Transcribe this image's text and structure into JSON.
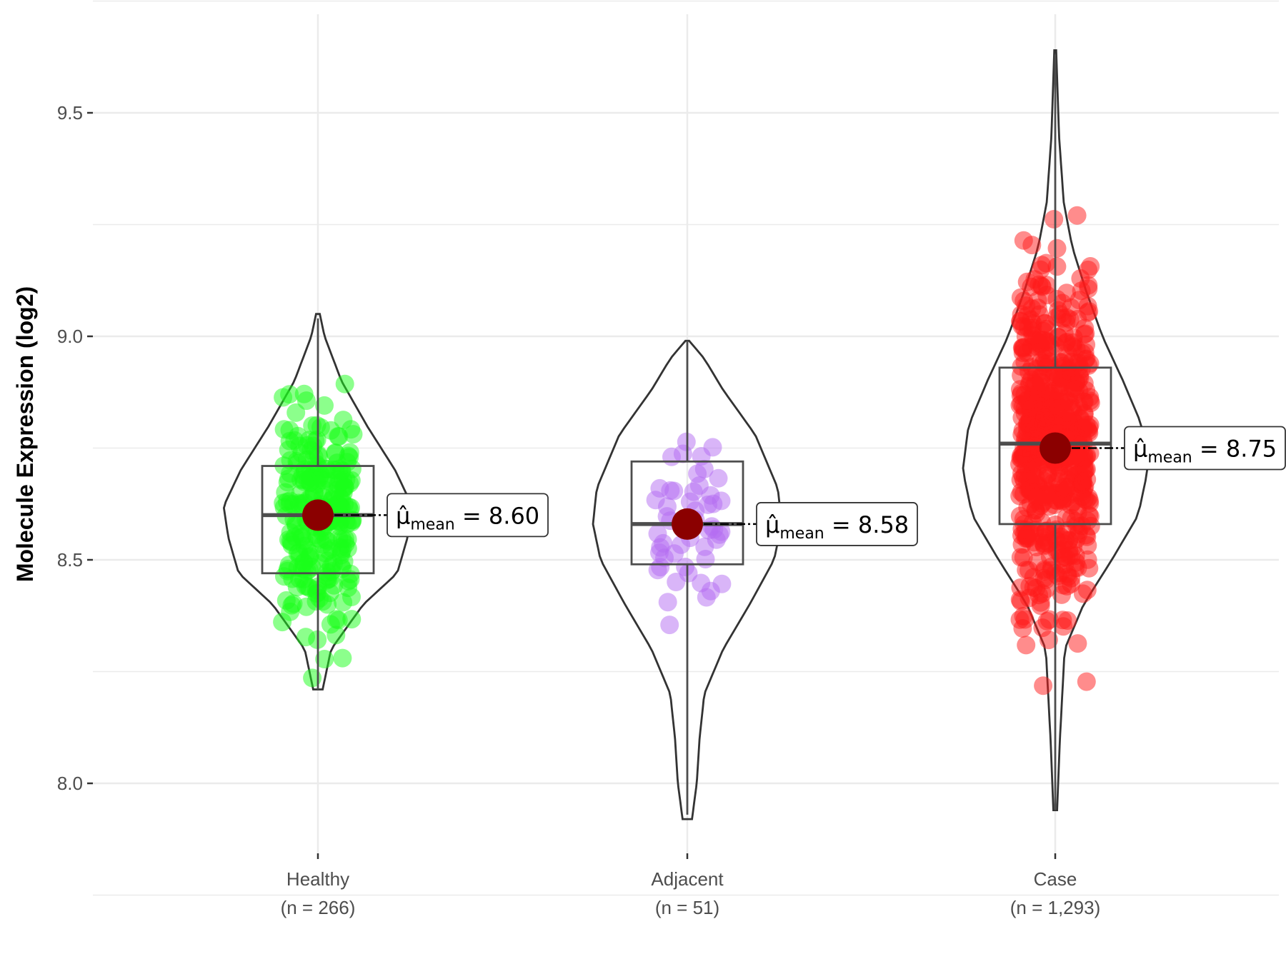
{
  "chart_data": {
    "type": "violin",
    "ylabel": "Molecule Expression (log2)",
    "ylim": [
      7.83,
      9.72
    ],
    "yticks": [
      8.0,
      8.5,
      9.0,
      9.5
    ],
    "ytick_labels": [
      "8.0",
      "8.5",
      "9.0",
      "9.5"
    ],
    "grid": true,
    "mean_symbol": "μ̂",
    "mean_subscript": "mean",
    "groups": [
      {
        "name": "Healthy",
        "n_label": "(n = 266)",
        "n": 266,
        "color": "#1aff1a",
        "q1": 8.47,
        "median": 8.6,
        "q3": 8.71,
        "whisker_low": 8.21,
        "whisker_high": 9.04,
        "mean": 8.6,
        "mean_label": "8.60",
        "violin_min": 8.21,
        "violin_max": 9.05,
        "violin_half_width": [
          [
            8.21,
            0.05
          ],
          [
            8.3,
            0.14
          ],
          [
            8.4,
            0.48
          ],
          [
            8.47,
            0.84
          ],
          [
            8.55,
            0.95
          ],
          [
            8.62,
            1.0
          ],
          [
            8.7,
            0.82
          ],
          [
            8.8,
            0.52
          ],
          [
            8.9,
            0.25
          ],
          [
            9.0,
            0.07
          ],
          [
            9.05,
            0.02
          ]
        ]
      },
      {
        "name": "Adjacent",
        "n_label": "(n = 51)",
        "n": 51,
        "color": "#b36bf2",
        "q1": 8.49,
        "median": 8.58,
        "q3": 8.72,
        "whisker_low": 7.93,
        "whisker_high": 8.99,
        "mean": 8.58,
        "mean_label": "8.58",
        "violin_min": 7.92,
        "violin_max": 8.99,
        "violin_half_width": [
          [
            7.92,
            0.05
          ],
          [
            8.0,
            0.1
          ],
          [
            8.1,
            0.13
          ],
          [
            8.2,
            0.18
          ],
          [
            8.3,
            0.38
          ],
          [
            8.4,
            0.66
          ],
          [
            8.5,
            0.92
          ],
          [
            8.58,
            1.0
          ],
          [
            8.66,
            0.96
          ],
          [
            8.78,
            0.72
          ],
          [
            8.88,
            0.38
          ],
          [
            8.95,
            0.18
          ],
          [
            8.99,
            0.02
          ]
        ]
      },
      {
        "name": "Case",
        "n_label": "(n = 1,293)",
        "n": 1293,
        "color": "#ff1a1a",
        "q1": 8.58,
        "median": 8.76,
        "q3": 8.93,
        "whisker_low": 7.94,
        "whisker_high": 9.63,
        "mean": 8.75,
        "mean_label": "8.75",
        "violin_min": 7.94,
        "violin_max": 9.64,
        "violin_half_width": [
          [
            7.94,
            0.02
          ],
          [
            8.1,
            0.05
          ],
          [
            8.3,
            0.1
          ],
          [
            8.4,
            0.3
          ],
          [
            8.5,
            0.6
          ],
          [
            8.6,
            0.88
          ],
          [
            8.7,
            0.98
          ],
          [
            8.8,
            0.92
          ],
          [
            8.9,
            0.72
          ],
          [
            9.0,
            0.5
          ],
          [
            9.1,
            0.33
          ],
          [
            9.2,
            0.18
          ],
          [
            9.3,
            0.09
          ],
          [
            9.45,
            0.04
          ],
          [
            9.64,
            0.01
          ]
        ]
      }
    ]
  }
}
